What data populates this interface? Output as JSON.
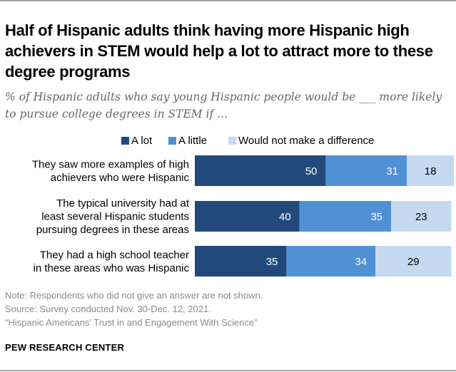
{
  "header": {
    "title": "Half of Hispanic adults think having more Hispanic high achievers in STEM would help a lot to attract more to these degree programs",
    "subtitle": "% of Hispanic adults who say young Hispanic people would be ___ more likely to pursue college degrees in STEM if ..."
  },
  "colors": {
    "a_lot": "#21497c",
    "a_little": "#5190d5",
    "no_difference": "#c5d9f0",
    "label_on_dark": "#ffffff",
    "label_on_light": "#000000"
  },
  "chart_data": {
    "type": "bar",
    "orientation": "horizontal",
    "stacked": true,
    "title": "Half of Hispanic adults think having more Hispanic high achievers in STEM would help a lot to attract more to these degree programs",
    "subtitle": "% of Hispanic adults who say young Hispanic people would be ___ more likely to pursue college degrees in STEM if ...",
    "xlabel": "",
    "ylabel": "",
    "xlim": [
      0,
      100
    ],
    "grid": false,
    "legend_position": "top-right",
    "categories": [
      [
        "They saw more examples of high",
        "achievers who were Hispanic"
      ],
      [
        "The typical university had at",
        "least several Hispanic students",
        "pursuing degrees in these areas"
      ],
      [
        "They had a high school teacher",
        "in these areas who was Hispanic"
      ]
    ],
    "series": [
      {
        "name": "A lot",
        "values": [
          50,
          40,
          35
        ]
      },
      {
        "name": "A little",
        "values": [
          31,
          35,
          34
        ]
      },
      {
        "name": "Would not make a difference",
        "values": [
          18,
          23,
          29
        ]
      }
    ]
  },
  "footer": {
    "note": "Note: Respondents who did not give an answer are not shown.",
    "source": "Source: Survey conducted Nov. 30-Dec. 12, 2021.",
    "report": "“Hispanic Americans’ Trust in and Engagement With Science”",
    "brand": "PEW RESEARCH CENTER"
  }
}
